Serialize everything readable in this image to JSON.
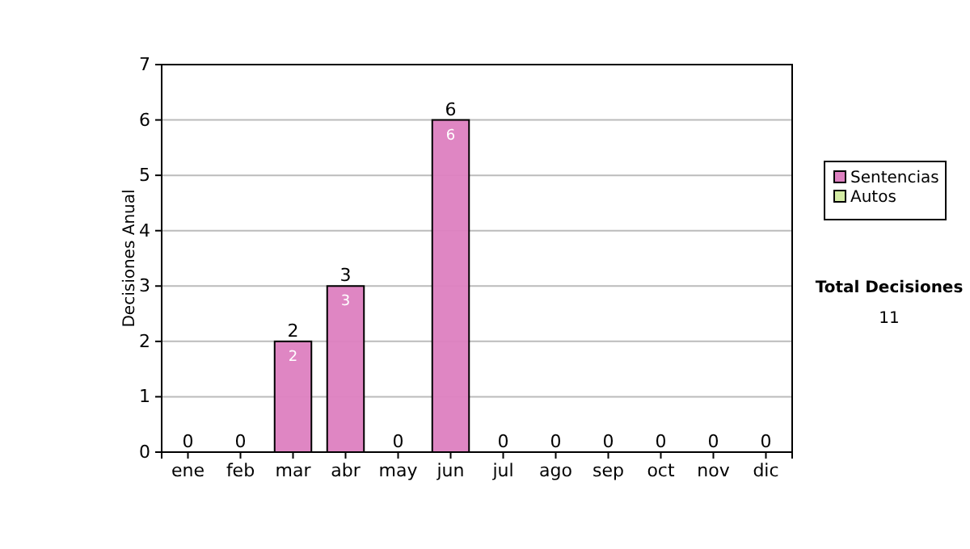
{
  "chart_data": {
    "type": "bar",
    "stacked": true,
    "ylabel": "Decisiones Anual",
    "categories": [
      "ene",
      "feb",
      "mar",
      "abr",
      "may",
      "jun",
      "jul",
      "ago",
      "sep",
      "oct",
      "nov",
      "dic"
    ],
    "series": [
      {
        "name": "Sentencias",
        "color": "#dd80c0",
        "values": [
          0,
          0,
          2,
          3,
          0,
          6,
          0,
          0,
          0,
          0,
          0,
          0
        ],
        "value_labels": [
          null,
          null,
          "2",
          "3",
          null,
          "6",
          null,
          null,
          null,
          null,
          null,
          null
        ]
      },
      {
        "name": "Autos",
        "color": "#d4eca4",
        "values": [
          0,
          0,
          0,
          0,
          0,
          0,
          0,
          0,
          0,
          0,
          0,
          0
        ]
      }
    ],
    "totals": [
      "0",
      "0",
      "2",
      "3",
      "0",
      "6",
      "0",
      "0",
      "0",
      "0",
      "0",
      "0"
    ],
    "ylim": [
      0,
      7
    ],
    "yticks": [
      0,
      1,
      2,
      3,
      4,
      5,
      6,
      7
    ],
    "grid": "y",
    "legend": "right",
    "annotations": [
      "Total Decisiones",
      "11"
    ]
  }
}
